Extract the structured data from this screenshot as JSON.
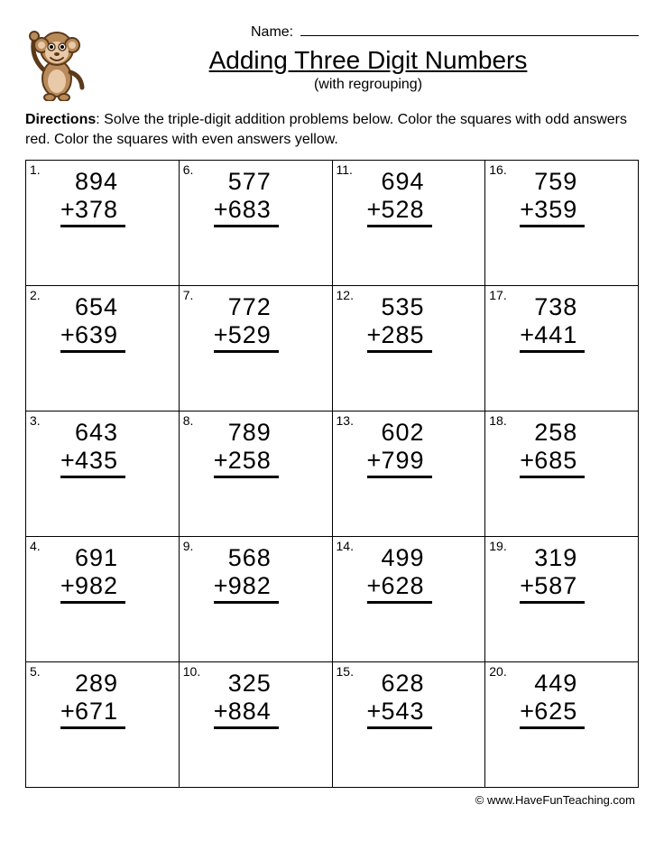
{
  "header": {
    "name_label": "Name:",
    "title": "Adding Three Digit Numbers",
    "subtitle": "(with regrouping)"
  },
  "directions": {
    "label": "Directions",
    "text": ": Solve the triple-digit addition problems below. Color the squares with odd answers red. Color the squares with even answers yellow."
  },
  "footer": "© www.HaveFunTeaching.com",
  "grid": {
    "rows": 5,
    "cols": 4,
    "cell_border_color": "#000000",
    "problem_fontsize": 27,
    "number_fontsize": 14,
    "operator": "+"
  },
  "problems": [
    {
      "n": "1.",
      "a": "894",
      "b": "378"
    },
    {
      "n": "6.",
      "a": "577",
      "b": "683"
    },
    {
      "n": "11.",
      "a": "694",
      "b": "528"
    },
    {
      "n": "16.",
      "a": "759",
      "b": "359"
    },
    {
      "n": "2.",
      "a": "654",
      "b": "639"
    },
    {
      "n": "7.",
      "a": "772",
      "b": "529"
    },
    {
      "n": "12.",
      "a": "535",
      "b": "285"
    },
    {
      "n": "17.",
      "a": "738",
      "b": "441"
    },
    {
      "n": "3.",
      "a": "643",
      "b": "435"
    },
    {
      "n": "8.",
      "a": "789",
      "b": "258"
    },
    {
      "n": "13.",
      "a": "602",
      "b": "799"
    },
    {
      "n": "18.",
      "a": "258",
      "b": "685"
    },
    {
      "n": "4.",
      "a": "691",
      "b": "982"
    },
    {
      "n": "9.",
      "a": "568",
      "b": "982"
    },
    {
      "n": "14.",
      "a": "499",
      "b": "628"
    },
    {
      "n": "19.",
      "a": "319",
      "b": "587"
    },
    {
      "n": "5.",
      "a": "289",
      "b": "671"
    },
    {
      "n": "10.",
      "a": "325",
      "b": "884"
    },
    {
      "n": "15.",
      "a": "628",
      "b": "543"
    },
    {
      "n": "20.",
      "a": "449",
      "b": "625"
    }
  ],
  "mascot": {
    "body_color": "#b98a5a",
    "ear_inner": "#e8c9a8",
    "outline": "#5b3a1a"
  }
}
